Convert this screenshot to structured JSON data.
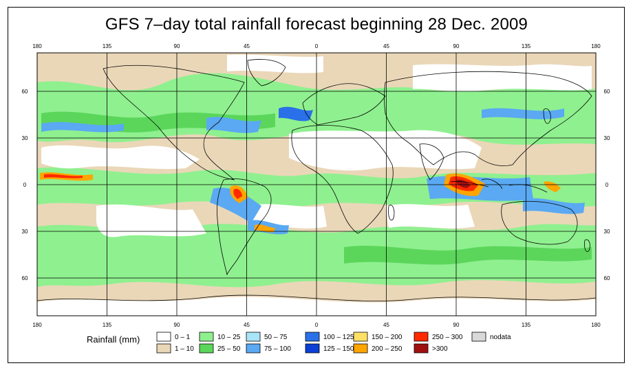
{
  "title": "GFS 7–day total rainfall forecast beginning 28 Dec. 2009",
  "lon_ticks": [
    "180",
    "135",
    "90",
    "45",
    "0",
    "45",
    "90",
    "135",
    "180"
  ],
  "lat_ticks": [
    "60",
    "30",
    "0",
    "30",
    "60"
  ],
  "legend": {
    "title": "Rainfall (mm)",
    "items": [
      {
        "label": "0 – 1",
        "color": "#ffffff"
      },
      {
        "label": "1 – 10",
        "color": "#ead7b8"
      },
      {
        "label": "10 – 25",
        "color": "#8ff08f"
      },
      {
        "label": "25 – 50",
        "color": "#5bd65b"
      },
      {
        "label": "50 – 75",
        "color": "#a9e4f7"
      },
      {
        "label": "75 – 100",
        "color": "#5aa9f2"
      },
      {
        "label": "100 – 125",
        "color": "#2a70e8"
      },
      {
        "label": "125 – 150",
        "color": "#0b3fd6"
      },
      {
        "label": "150 – 200",
        "color": "#ffe066"
      },
      {
        "label": "200 – 250",
        "color": "#ffa500"
      },
      {
        "label": "250 – 300",
        "color": "#ff2a00"
      },
      {
        "label": ">300",
        "color": "#a01010"
      },
      {
        "label": "nodata",
        "color": "#d9d9d9"
      }
    ]
  },
  "colors": {
    "beige": "#ead7b8",
    "green": "#8ff08f",
    "green_dark": "#5bd65b",
    "blue_light": "#a9e4f7",
    "blue": "#5aa9f2",
    "blue_dark": "#2a70e8",
    "orange": "#ffa500",
    "red": "#ff2a00"
  }
}
